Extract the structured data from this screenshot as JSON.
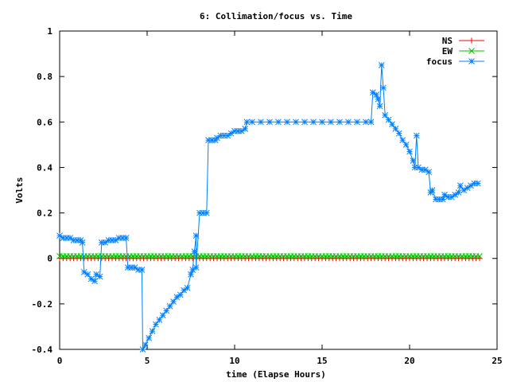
{
  "chart_data": {
    "type": "line",
    "title": "6: Collimation/focus vs. Time",
    "xlabel": "time (Elapse Hours)",
    "ylabel": "Volts",
    "xlim": [
      0,
      25
    ],
    "ylim": [
      -0.4,
      1
    ],
    "xticks": [
      0,
      5,
      10,
      15,
      20,
      25
    ],
    "xtick_labels": [
      "0",
      "5",
      "10",
      "15",
      "20",
      "25"
    ],
    "yticks": [
      -0.4,
      -0.2,
      0,
      0.2,
      0.4,
      0.6,
      0.8,
      1
    ],
    "ytick_labels": [
      "-0.4",
      "-0.2",
      "0",
      "0.2",
      "0.4",
      "0.6",
      "0.8",
      "1"
    ],
    "grid": false,
    "legend_position": "top-right",
    "series": [
      {
        "name": "NS",
        "color": "#ff0000",
        "marker": "plus",
        "constant": 0.0,
        "x_range": [
          0,
          24
        ],
        "step": 0.2
      },
      {
        "name": "EW",
        "color": "#00c000",
        "marker": "cross",
        "constant": 0.01,
        "x_range": [
          0,
          24
        ],
        "step": 0.2
      },
      {
        "name": "focus",
        "color": "#0080ff",
        "marker": "star",
        "points": [
          [
            0.0,
            0.1
          ],
          [
            0.2,
            0.09
          ],
          [
            0.4,
            0.09
          ],
          [
            0.6,
            0.09
          ],
          [
            0.8,
            0.08
          ],
          [
            1.0,
            0.08
          ],
          [
            1.2,
            0.08
          ],
          [
            1.3,
            0.07
          ],
          [
            1.4,
            -0.06
          ],
          [
            1.6,
            -0.07
          ],
          [
            1.8,
            -0.09
          ],
          [
            2.0,
            -0.1
          ],
          [
            2.1,
            -0.07
          ],
          [
            2.3,
            -0.08
          ],
          [
            2.4,
            0.07
          ],
          [
            2.6,
            0.07
          ],
          [
            2.8,
            0.08
          ],
          [
            3.0,
            0.08
          ],
          [
            3.2,
            0.08
          ],
          [
            3.4,
            0.09
          ],
          [
            3.6,
            0.09
          ],
          [
            3.8,
            0.09
          ],
          [
            3.9,
            -0.04
          ],
          [
            4.1,
            -0.04
          ],
          [
            4.3,
            -0.04
          ],
          [
            4.5,
            -0.05
          ],
          [
            4.7,
            -0.05
          ],
          [
            4.75,
            -0.4
          ],
          [
            4.9,
            -0.38
          ],
          [
            5.1,
            -0.35
          ],
          [
            5.3,
            -0.32
          ],
          [
            5.5,
            -0.29
          ],
          [
            5.7,
            -0.27
          ],
          [
            5.9,
            -0.25
          ],
          [
            6.1,
            -0.23
          ],
          [
            6.3,
            -0.21
          ],
          [
            6.5,
            -0.19
          ],
          [
            6.7,
            -0.17
          ],
          [
            6.9,
            -0.16
          ],
          [
            7.1,
            -0.14
          ],
          [
            7.3,
            -0.13
          ],
          [
            7.5,
            -0.07
          ],
          [
            7.6,
            -0.05
          ],
          [
            7.7,
            0.03
          ],
          [
            7.8,
            0.1
          ],
          [
            7.8,
            -0.04
          ],
          [
            8.0,
            0.2
          ],
          [
            8.2,
            0.2
          ],
          [
            8.4,
            0.2
          ],
          [
            8.5,
            0.52
          ],
          [
            8.7,
            0.52
          ],
          [
            8.9,
            0.52
          ],
          [
            9.0,
            0.53
          ],
          [
            9.2,
            0.54
          ],
          [
            9.4,
            0.54
          ],
          [
            9.6,
            0.54
          ],
          [
            9.8,
            0.55
          ],
          [
            10.0,
            0.56
          ],
          [
            10.2,
            0.56
          ],
          [
            10.4,
            0.56
          ],
          [
            10.6,
            0.57
          ],
          [
            10.7,
            0.6
          ],
          [
            11.0,
            0.6
          ],
          [
            11.5,
            0.6
          ],
          [
            12.0,
            0.6
          ],
          [
            12.5,
            0.6
          ],
          [
            13.0,
            0.6
          ],
          [
            13.5,
            0.6
          ],
          [
            14.0,
            0.6
          ],
          [
            14.5,
            0.6
          ],
          [
            15.0,
            0.6
          ],
          [
            15.5,
            0.6
          ],
          [
            16.0,
            0.6
          ],
          [
            16.5,
            0.6
          ],
          [
            17.0,
            0.6
          ],
          [
            17.5,
            0.6
          ],
          [
            17.8,
            0.6
          ],
          [
            17.9,
            0.73
          ],
          [
            18.1,
            0.72
          ],
          [
            18.2,
            0.7
          ],
          [
            18.3,
            0.67
          ],
          [
            18.4,
            0.85
          ],
          [
            18.5,
            0.75
          ],
          [
            18.6,
            0.63
          ],
          [
            18.8,
            0.61
          ],
          [
            19.0,
            0.59
          ],
          [
            19.2,
            0.57
          ],
          [
            19.4,
            0.55
          ],
          [
            19.6,
            0.52
          ],
          [
            19.8,
            0.5
          ],
          [
            20.0,
            0.47
          ],
          [
            20.2,
            0.43
          ],
          [
            20.3,
            0.4
          ],
          [
            20.4,
            0.54
          ],
          [
            20.5,
            0.4
          ],
          [
            20.7,
            0.39
          ],
          [
            20.9,
            0.39
          ],
          [
            21.1,
            0.38
          ],
          [
            21.2,
            0.29
          ],
          [
            21.3,
            0.3
          ],
          [
            21.5,
            0.26
          ],
          [
            21.7,
            0.26
          ],
          [
            21.9,
            0.26
          ],
          [
            22.0,
            0.28
          ],
          [
            22.2,
            0.27
          ],
          [
            22.4,
            0.27
          ],
          [
            22.6,
            0.28
          ],
          [
            22.8,
            0.29
          ],
          [
            22.9,
            0.32
          ],
          [
            23.1,
            0.3
          ],
          [
            23.3,
            0.31
          ],
          [
            23.5,
            0.32
          ],
          [
            23.7,
            0.33
          ],
          [
            23.9,
            0.33
          ]
        ]
      }
    ]
  }
}
